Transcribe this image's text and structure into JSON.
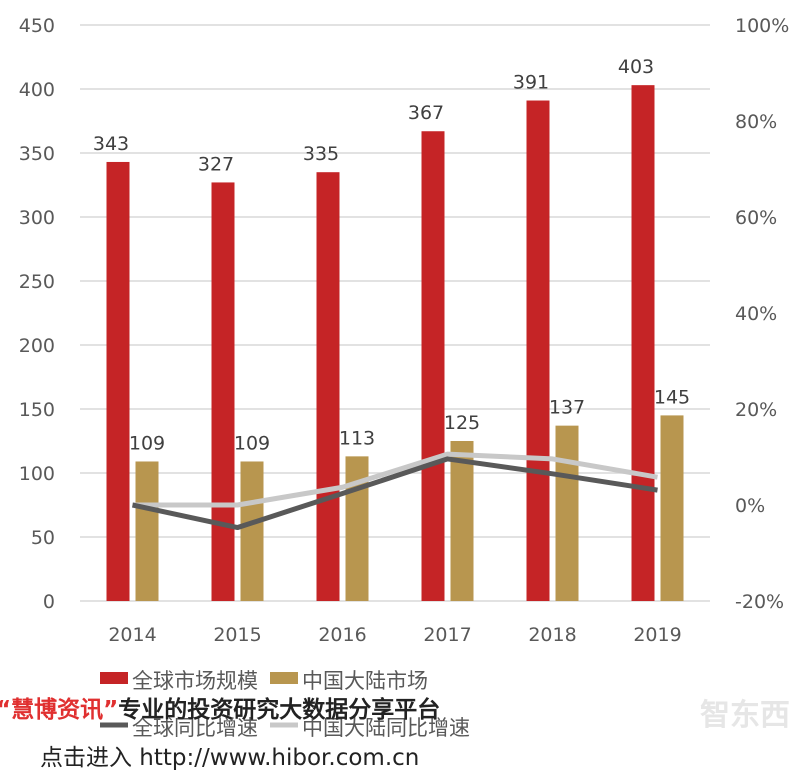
{
  "chart_data": {
    "type": "bar+line",
    "categories": [
      "2014",
      "2015",
      "2016",
      "2017",
      "2018",
      "2019"
    ],
    "series": [
      {
        "name": "全球市场规模",
        "type": "bar",
        "axis": "left",
        "color": "#c52426",
        "values": [
          343,
          327,
          335,
          367,
          391,
          403
        ]
      },
      {
        "name": "中国大陆市场",
        "type": "bar",
        "axis": "left",
        "color": "#b8964f",
        "values": [
          109,
          109,
          113,
          125,
          137,
          145
        ]
      },
      {
        "name": "全球同比增速",
        "type": "line",
        "axis": "right",
        "color": "#595959",
        "values": [
          0,
          -4.7,
          2.4,
          9.6,
          6.5,
          3.1
        ]
      },
      {
        "name": "中国大陆同比增速",
        "type": "line",
        "axis": "right",
        "color": "#c8c8c8",
        "values": [
          0,
          0,
          3.7,
          10.6,
          9.6,
          5.8
        ]
      }
    ],
    "y_left": {
      "range": [
        0,
        450
      ],
      "ticks": [
        "0",
        "50",
        "100",
        "150",
        "200",
        "250",
        "300",
        "350",
        "400",
        "450"
      ]
    },
    "y_right": {
      "range": [
        -20,
        100
      ],
      "ticks": [
        "-20%",
        "0%",
        "20%",
        "40%",
        "60%",
        "80%",
        "100%"
      ]
    },
    "grid": true,
    "legend": "bottom",
    "data_labels": true
  },
  "watermark": {
    "brand": "“慧博资讯”",
    "slogan": "专业的投资研究大数据分享平台",
    "link": "点击进入 http://www.hibor.com.cn",
    "logo": "智东西"
  }
}
